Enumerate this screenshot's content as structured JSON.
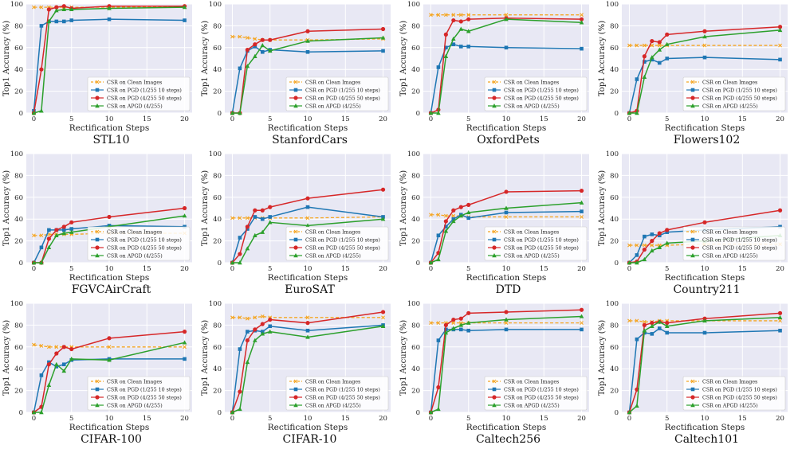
{
  "figure": {
    "ylabel": "Top1 Accuracy (%)",
    "xlabel": "Rectification Steps",
    "x": [
      0,
      1,
      2,
      3,
      4,
      5,
      10,
      20
    ],
    "xticks": [
      0,
      5,
      10,
      15,
      20
    ],
    "yticks": [
      0,
      20,
      40,
      60,
      80,
      100
    ],
    "ylim": [
      0,
      100
    ],
    "xlim": [
      -1,
      21
    ],
    "legend_labels": [
      "CSR on Clean Images",
      "CSR on PGD (1/255 10 steps)",
      "CSR on PGD (4/255 50 steps)",
      "CSR on APGD (4/255)"
    ],
    "colors": {
      "clean": "#f5a623",
      "pgd1": "#1f77b4",
      "pgd4": "#d62728",
      "apgd": "#2ca02c",
      "bg": "#e8e8f4"
    }
  },
  "chart_data": [
    {
      "type": "line",
      "title": "STL10",
      "series": [
        {
          "name": "CSR on Clean Images",
          "values": [
            97,
            97,
            97,
            97,
            97,
            97,
            97,
            97
          ]
        },
        {
          "name": "CSR on PGD (1/255 10 steps)",
          "values": [
            2,
            80,
            84,
            84,
            84,
            85,
            86,
            85
          ]
        },
        {
          "name": "CSR on PGD (4/255 50 steps)",
          "values": [
            0,
            40,
            95,
            97,
            98,
            96,
            98,
            98
          ]
        },
        {
          "name": "CSR on APGD (4/255)",
          "values": [
            0,
            2,
            84,
            94,
            95,
            95,
            96,
            97
          ]
        }
      ]
    },
    {
      "type": "line",
      "title": "StanfordCars",
      "series": [
        {
          "name": "CSR on Clean Images",
          "values": [
            70,
            70,
            69,
            68,
            67,
            67,
            67,
            68
          ]
        },
        {
          "name": "CSR on PGD (1/255 10 steps)",
          "values": [
            0,
            41,
            57,
            61,
            56,
            58,
            56,
            57
          ]
        },
        {
          "name": "CSR on PGD (4/255 50 steps)",
          "values": [
            0,
            0,
            58,
            63,
            67,
            67,
            75,
            77
          ]
        },
        {
          "name": "CSR on APGD (4/255)",
          "values": [
            0,
            0,
            43,
            52,
            62,
            57,
            66,
            69
          ]
        }
      ]
    },
    {
      "type": "line",
      "title": "OxfordPets",
      "series": [
        {
          "name": "CSR on Clean Images",
          "values": [
            90,
            90,
            90,
            90,
            90,
            90,
            90,
            90
          ]
        },
        {
          "name": "CSR on PGD (1/255 10 steps)",
          "values": [
            0,
            42,
            60,
            63,
            61,
            61,
            60,
            59
          ]
        },
        {
          "name": "CSR on PGD (4/255 50 steps)",
          "values": [
            0,
            3,
            72,
            85,
            84,
            86,
            87,
            86
          ]
        },
        {
          "name": "CSR on APGD (4/255)",
          "values": [
            0,
            0,
            52,
            68,
            77,
            75,
            86,
            83
          ]
        }
      ]
    },
    {
      "type": "line",
      "title": "Flowers102",
      "series": [
        {
          "name": "CSR on Clean Images",
          "values": [
            62,
            62,
            62,
            62,
            62,
            62,
            62,
            62
          ]
        },
        {
          "name": "CSR on PGD (1/255 10 steps)",
          "values": [
            0,
            31,
            47,
            49,
            46,
            50,
            51,
            49
          ]
        },
        {
          "name": "CSR on PGD (4/255 50 steps)",
          "values": [
            0,
            2,
            52,
            66,
            65,
            72,
            75,
            79
          ]
        },
        {
          "name": "CSR on APGD (4/255)",
          "values": [
            0,
            0,
            33,
            51,
            58,
            63,
            70,
            76
          ]
        }
      ]
    },
    {
      "type": "line",
      "title": "FGVCAirCraft",
      "series": [
        {
          "name": "CSR on Clean Images",
          "values": [
            25,
            25,
            26,
            26,
            26,
            26,
            27,
            27
          ]
        },
        {
          "name": "CSR on PGD (1/255 10 steps)",
          "values": [
            0,
            14,
            30,
            30,
            30,
            31,
            34,
            33
          ]
        },
        {
          "name": "CSR on PGD (4/255 50 steps)",
          "values": [
            0,
            0,
            22,
            30,
            33,
            37,
            42,
            50
          ]
        },
        {
          "name": "CSR on APGD (4/255)",
          "values": [
            0,
            0,
            14,
            25,
            27,
            28,
            33,
            43
          ]
        }
      ]
    },
    {
      "type": "line",
      "title": "EuroSAT",
      "series": [
        {
          "name": "CSR on Clean Images",
          "values": [
            41,
            41,
            41,
            41,
            41,
            41,
            41,
            42
          ]
        },
        {
          "name": "CSR on PGD (1/255 10 steps)",
          "values": [
            0,
            23,
            31,
            42,
            40,
            42,
            51,
            42
          ]
        },
        {
          "name": "CSR on PGD (4/255 50 steps)",
          "values": [
            0,
            8,
            33,
            48,
            48,
            51,
            59,
            67
          ]
        },
        {
          "name": "CSR on APGD (4/255)",
          "values": [
            0,
            0,
            13,
            25,
            28,
            37,
            34,
            40
          ]
        }
      ]
    },
    {
      "type": "line",
      "title": "DTD",
      "series": [
        {
          "name": "CSR on Clean Images",
          "values": [
            44,
            44,
            43,
            43,
            43,
            42,
            42,
            42
          ]
        },
        {
          "name": "CSR on PGD (1/255 10 steps)",
          "values": [
            0,
            25,
            33,
            40,
            44,
            41,
            46,
            47
          ]
        },
        {
          "name": "CSR on PGD (4/255 50 steps)",
          "values": [
            0,
            9,
            38,
            48,
            51,
            53,
            65,
            66
          ]
        },
        {
          "name": "CSR on APGD (4/255)",
          "values": [
            0,
            3,
            29,
            38,
            43,
            46,
            50,
            55
          ]
        }
      ]
    },
    {
      "type": "line",
      "title": "Country211",
      "series": [
        {
          "name": "CSR on Clean Images",
          "values": [
            16,
            16,
            16,
            16,
            16,
            16,
            17,
            17
          ]
        },
        {
          "name": "CSR on PGD (1/255 10 steps)",
          "values": [
            0,
            7,
            24,
            26,
            25,
            28,
            30,
            33
          ]
        },
        {
          "name": "CSR on PGD (4/255 50 steps)",
          "values": [
            0,
            1,
            12,
            20,
            27,
            30,
            37,
            48
          ]
        },
        {
          "name": "CSR on APGD (4/255)",
          "values": [
            0,
            0,
            3,
            11,
            14,
            18,
            20,
            25
          ]
        }
      ]
    },
    {
      "type": "line",
      "title": "CIFAR-100",
      "series": [
        {
          "name": "CSR on Clean Images",
          "values": [
            62,
            61,
            60,
            60,
            60,
            60,
            60,
            60
          ]
        },
        {
          "name": "CSR on PGD (1/255 10 steps)",
          "values": [
            0,
            34,
            46,
            42,
            44,
            48,
            49,
            49
          ]
        },
        {
          "name": "CSR on PGD (4/255 50 steps)",
          "values": [
            0,
            5,
            44,
            54,
            60,
            58,
            68,
            74
          ]
        },
        {
          "name": "CSR on APGD (4/255)",
          "values": [
            0,
            0,
            25,
            44,
            38,
            49,
            48,
            64
          ]
        }
      ]
    },
    {
      "type": "line",
      "title": "CIFAR-10",
      "series": [
        {
          "name": "CSR on Clean Images",
          "values": [
            87,
            87,
            86,
            87,
            88,
            87,
            87,
            87
          ]
        },
        {
          "name": "CSR on PGD (1/255 10 steps)",
          "values": [
            0,
            58,
            74,
            75,
            74,
            79,
            75,
            80
          ]
        },
        {
          "name": "CSR on PGD (4/255 50 steps)",
          "values": [
            0,
            19,
            66,
            76,
            81,
            85,
            82,
            92
          ]
        },
        {
          "name": "CSR on APGD (4/255)",
          "values": [
            0,
            3,
            46,
            66,
            72,
            74,
            69,
            79
          ]
        }
      ]
    },
    {
      "type": "line",
      "title": "Caltech256",
      "series": [
        {
          "name": "CSR on Clean Images",
          "values": [
            82,
            82,
            82,
            82,
            82,
            82,
            82,
            82
          ]
        },
        {
          "name": "CSR on PGD (1/255 10 steps)",
          "values": [
            0,
            66,
            76,
            76,
            76,
            75,
            76,
            76
          ]
        },
        {
          "name": "CSR on PGD (4/255 50 steps)",
          "values": [
            0,
            23,
            80,
            85,
            86,
            91,
            92,
            94
          ]
        },
        {
          "name": "CSR on APGD (4/255)",
          "values": [
            0,
            3,
            73,
            77,
            80,
            82,
            85,
            88
          ]
        }
      ]
    },
    {
      "type": "line",
      "title": "Caltech101",
      "series": [
        {
          "name": "CSR on Clean Images",
          "values": [
            84,
            84,
            83,
            83,
            84,
            84,
            84,
            84
          ]
        },
        {
          "name": "CSR on PGD (1/255 10 steps)",
          "values": [
            0,
            67,
            73,
            72,
            77,
            73,
            73,
            75
          ]
        },
        {
          "name": "CSR on PGD (4/255 50 steps)",
          "values": [
            0,
            21,
            80,
            82,
            83,
            82,
            86,
            91
          ]
        },
        {
          "name": "CSR on APGD (4/255)",
          "values": [
            0,
            6,
            75,
            79,
            83,
            79,
            84,
            87
          ]
        }
      ]
    }
  ]
}
